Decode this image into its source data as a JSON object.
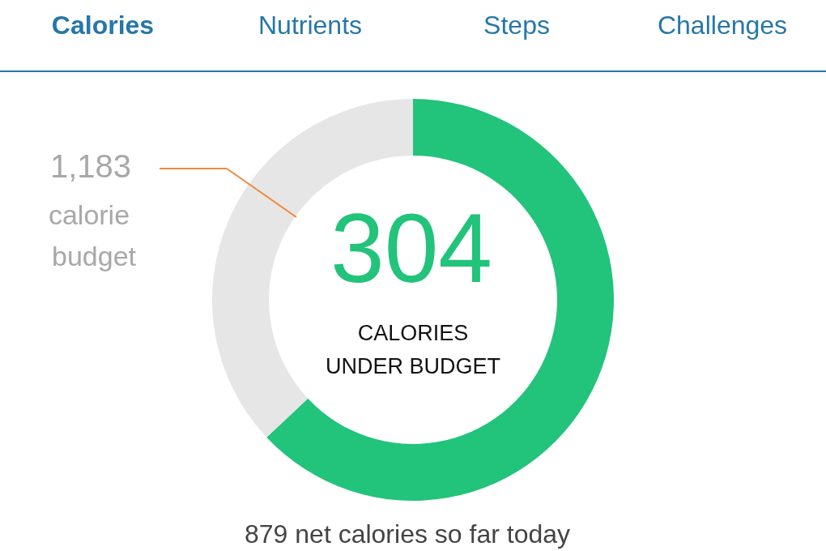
{
  "chart_data": {
    "type": "donut",
    "categories": [
      null,
      null
    ],
    "values": [
      63,
      37
    ],
    "colors": [
      "#22c37a",
      "#e6e6e6"
    ],
    "annotations": [
      "Calories",
      "Nutrients",
      "Steps",
      "Challenges",
      "1,183",
      "calorie",
      "budget",
      "304",
      "CALORIES",
      "UNDER BUDGET",
      "879 net calories so far today"
    ]
  }
}
